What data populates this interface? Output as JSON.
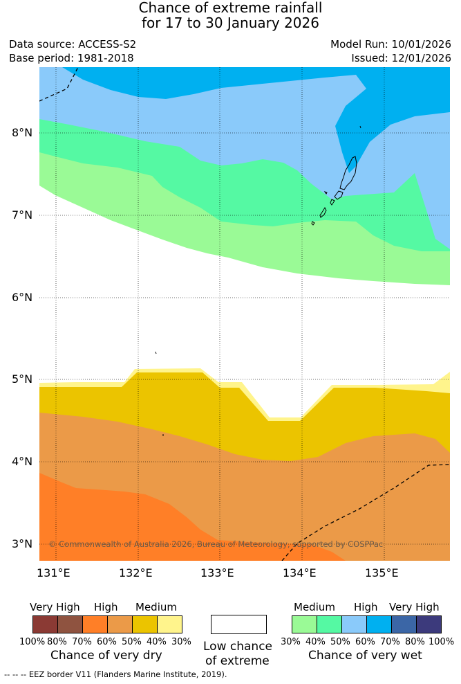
{
  "title": {
    "line1": "Chance of extreme rainfall",
    "line2": "for 17 to 30 January 2026"
  },
  "header": {
    "data_source": "Data source: ACCESS-S2",
    "base_period": "Base period: 1981-2018",
    "model_run": "Model Run: 10/01/2026",
    "issued": "Issued: 12/01/2026"
  },
  "map": {
    "lat_labels": [
      "8°N",
      "7°N",
      "6°N",
      "5°N",
      "4°N",
      "3°N"
    ],
    "lon_labels": [
      "131°E",
      "132°E",
      "133°E",
      "134°E",
      "135°E"
    ],
    "copyright": "© Commonwealth of Australia 2026, Bureau of Meteorology, supported by COSPPac"
  },
  "legend": {
    "dry": {
      "categories": [
        "Very High",
        "High",
        "Medium"
      ],
      "colors": [
        "#8B3A34",
        "#8F5340",
        "#FF7F27",
        "#EB9A48",
        "#EBC400",
        "#FFF48C"
      ],
      "percents": [
        "100%",
        "80%",
        "70%",
        "60%",
        "50%",
        "40%",
        "30%"
      ],
      "caption": "Chance of very dry"
    },
    "low": {
      "line1": "Low chance",
      "line2": "of extreme"
    },
    "wet": {
      "categories": [
        "Medium",
        "High",
        "Very High"
      ],
      "colors": [
        "#9AFA96",
        "#55F9A3",
        "#8ACAFA",
        "#00B0F0",
        "#3B66A6",
        "#3C3A7C"
      ],
      "percents": [
        "30%",
        "40%",
        "50%",
        "60%",
        "70%",
        "80%",
        "100%"
      ],
      "caption": "Chance of very wet"
    },
    "eez_note": "--  --  -- EEZ border V11 (Flanders Marine Institute, 2019)."
  }
}
